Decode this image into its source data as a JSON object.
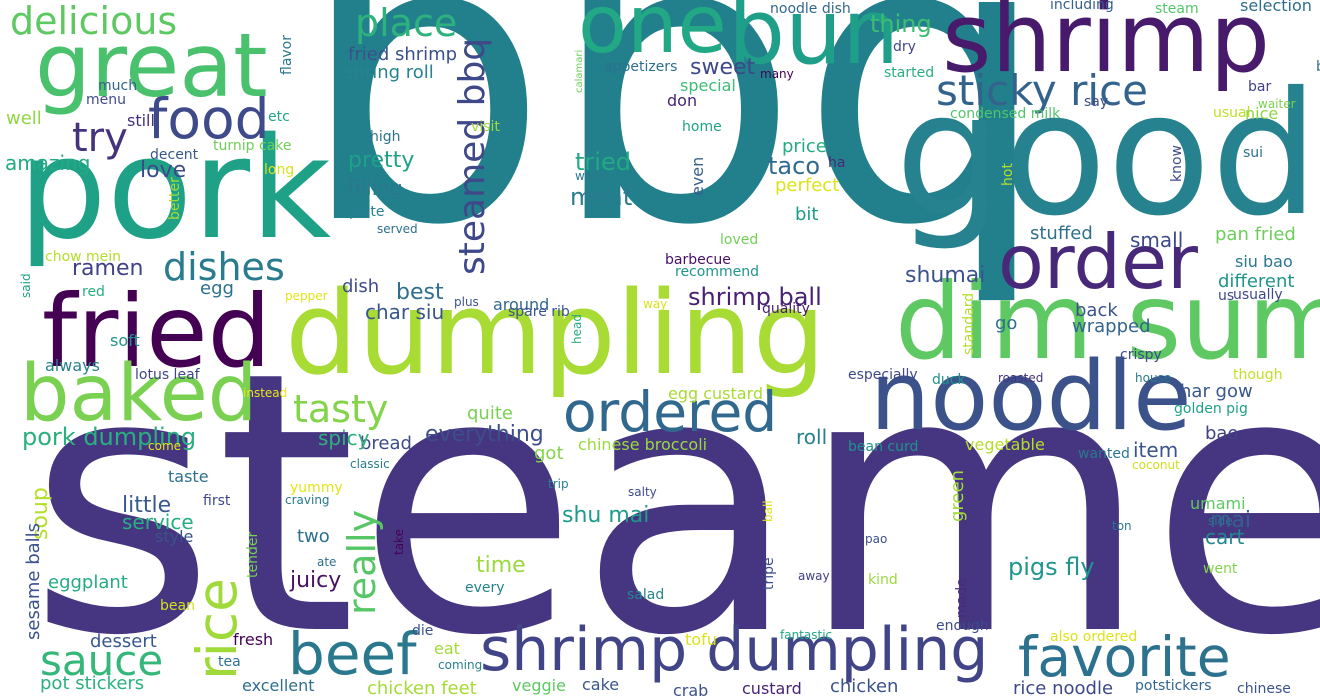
{
  "words": [
    {
      "text": "bbq",
      "color": "#21808c"
    },
    {
      "text": "steamed",
      "color": "#463681"
    },
    {
      "text": "dumpling",
      "color": "#a8db34"
    },
    {
      "text": "good",
      "color": "#26828e"
    },
    {
      "text": "pork",
      "color": "#1fa187"
    },
    {
      "text": "dim sum",
      "color": "#5ec962"
    },
    {
      "text": "shrimp",
      "color": "#481a6c"
    },
    {
      "text": "noodle",
      "color": "#3b528b"
    },
    {
      "text": "great",
      "color": "#4ac16d"
    },
    {
      "text": "bun",
      "color": "#1f9e89"
    },
    {
      "text": "fried",
      "color": "#440154"
    },
    {
      "text": "baked",
      "color": "#7ad151"
    },
    {
      "text": "order",
      "color": "#482878"
    },
    {
      "text": "one",
      "color": "#22a884"
    },
    {
      "text": "beef",
      "color": "#2a788e"
    },
    {
      "text": "shrimp dumpling",
      "color": "#414487"
    },
    {
      "text": "favorite",
      "color": "#2c728e"
    },
    {
      "text": "food",
      "color": "#3e4a89"
    },
    {
      "text": "sticky rice",
      "color": "#33638d"
    },
    {
      "text": "ordered",
      "color": "#31688e"
    },
    {
      "text": "sauce",
      "color": "#35b779"
    },
    {
      "text": "rice",
      "color": "#9fda3a"
    },
    {
      "text": "delicious",
      "color": "#5ec962"
    },
    {
      "text": "place",
      "color": "#2db27d"
    },
    {
      "text": "try",
      "color": "#46337e"
    },
    {
      "text": "dishes",
      "color": "#287c8e"
    },
    {
      "text": "tasty",
      "color": "#84d44b"
    },
    {
      "text": "really",
      "color": "#56c667"
    },
    {
      "text": "steamed bbq",
      "color": "#3f4889"
    },
    {
      "text": "pork dumpling",
      "color": "#2ab07f"
    },
    {
      "text": "shrimp ball",
      "color": "#482173"
    },
    {
      "text": "pigs fly",
      "color": "#1f958b"
    },
    {
      "text": "shumai",
      "color": "#3b528b"
    },
    {
      "text": "ramen",
      "color": "#424086"
    },
    {
      "text": "everything",
      "color": "#3d4e8a"
    },
    {
      "text": "thing",
      "color": "#3fbc73"
    },
    {
      "text": "sweet",
      "color": "#3e4989"
    },
    {
      "text": "taco",
      "color": "#31688e"
    },
    {
      "text": "meat",
      "color": "#297b8e"
    },
    {
      "text": "tried",
      "color": "#23a983"
    },
    {
      "text": "pretty",
      "color": "#1fa088"
    },
    {
      "text": "filling",
      "color": "#2a778e"
    },
    {
      "text": "amazing",
      "color": "#24aa83"
    },
    {
      "text": "love",
      "color": "#3e4a89"
    },
    {
      "text": "little",
      "color": "#38598c"
    },
    {
      "text": "service",
      "color": "#29af7f"
    },
    {
      "text": "juicy",
      "color": "#471164"
    },
    {
      "text": "two",
      "color": "#2d708e"
    },
    {
      "text": "time",
      "color": "#9bd93c"
    },
    {
      "text": "shu mai",
      "color": "#1e9b8a"
    },
    {
      "text": "soup",
      "color": "#b5de2b"
    },
    {
      "text": "eggplant",
      "color": "#25ab82"
    },
    {
      "text": "mai",
      "color": "#35608d"
    },
    {
      "text": "cart",
      "color": "#23888e"
    },
    {
      "text": "roll",
      "color": "#277f8e"
    },
    {
      "text": "bread",
      "color": "#3e4c8a"
    },
    {
      "text": "spicy",
      "color": "#2db27d"
    },
    {
      "text": "quite",
      "color": "#7ad151"
    },
    {
      "text": "best",
      "color": "#2e6e8e"
    },
    {
      "text": "char siu",
      "color": "#39568c"
    },
    {
      "text": "egg",
      "color": "#2d708e"
    },
    {
      "text": "dish",
      "color": "#3e4c8a"
    },
    {
      "text": "wrapped",
      "color": "#32658e"
    },
    {
      "text": "back",
      "color": "#3b528b"
    },
    {
      "text": "go",
      "color": "#2c728e"
    },
    {
      "text": "small",
      "color": "#3e4989"
    },
    {
      "text": "stuffed",
      "color": "#2e6f8e"
    },
    {
      "text": "pan fried",
      "color": "#6ccd5a"
    },
    {
      "text": "siu bao",
      "color": "#2a788e"
    },
    {
      "text": "different",
      "color": "#1f968b"
    },
    {
      "text": "har gow",
      "color": "#38588c"
    },
    {
      "text": "bao",
      "color": "#424186"
    },
    {
      "text": "item",
      "color": "#3b528b"
    },
    {
      "text": "crispy",
      "color": "#3e4a89"
    },
    {
      "text": "fried shrimp",
      "color": "#3b518b"
    },
    {
      "text": "spring roll",
      "color": "#26828e"
    },
    {
      "text": "appetizers",
      "color": "#2d708e"
    },
    {
      "text": "special",
      "color": "#3fbc73"
    },
    {
      "text": "don",
      "color": "#482475"
    },
    {
      "text": "home",
      "color": "#1fa187"
    },
    {
      "text": "price",
      "color": "#25ac82"
    },
    {
      "text": "perfect",
      "color": "#dde318"
    },
    {
      "text": "bit",
      "color": "#1e9c89"
    },
    {
      "text": "ha",
      "color": "#482979"
    },
    {
      "text": "even",
      "color": "#355f8d"
    },
    {
      "text": "loved",
      "color": "#73d056"
    },
    {
      "text": "barbecue",
      "color": "#471063"
    },
    {
      "text": "recommend",
      "color": "#1f958b"
    },
    {
      "text": "around",
      "color": "#31688e"
    },
    {
      "text": "spare rib",
      "color": "#3a548c"
    },
    {
      "text": "quality",
      "color": "#481b6d"
    },
    {
      "text": "noodle dish",
      "color": "#31688e"
    },
    {
      "text": "including",
      "color": "#355f8d"
    },
    {
      "text": "steam",
      "color": "#52c569"
    },
    {
      "text": "selection",
      "color": "#2e6e8e"
    },
    {
      "text": "bite",
      "color": "#2e6e8e"
    },
    {
      "text": "waiter",
      "color": "#7ad151"
    },
    {
      "text": "bar",
      "color": "#424086"
    },
    {
      "text": "say",
      "color": "#3d4d8a"
    },
    {
      "text": "usual",
      "color": "#bddf26"
    },
    {
      "text": "nice",
      "color": "#8ed645"
    },
    {
      "text": "sui",
      "color": "#2d708e"
    },
    {
      "text": "know",
      "color": "#3e4989"
    },
    {
      "text": "dry",
      "color": "#3e4989"
    },
    {
      "text": "started",
      "color": "#29af7f"
    },
    {
      "text": "many",
      "color": "#440154"
    },
    {
      "text": "condensed milk",
      "color": "#52c569"
    },
    {
      "text": "calamari",
      "color": "#6ece58"
    },
    {
      "text": "visit",
      "color": "#a2da37"
    },
    {
      "text": "high",
      "color": "#2c728e"
    },
    {
      "text": "warm",
      "color": "#2a788e"
    },
    {
      "text": "served",
      "color": "#2e6f8e"
    },
    {
      "text": "plate",
      "color": "#277f8e"
    },
    {
      "text": "hot",
      "color": "#b5de2b"
    },
    {
      "text": "flavor",
      "color": "#2a778e"
    },
    {
      "text": "much",
      "color": "#33638d"
    },
    {
      "text": "menu",
      "color": "#3e4c8a"
    },
    {
      "text": "still",
      "color": "#46307e"
    },
    {
      "text": "etc",
      "color": "#21a585"
    },
    {
      "text": "well",
      "color": "#90d743"
    },
    {
      "text": "turnip cake",
      "color": "#6ece58"
    },
    {
      "text": "decent",
      "color": "#38588c"
    },
    {
      "text": "long",
      "color": "#d5e21a"
    },
    {
      "text": "better",
      "color": "#a5db36"
    },
    {
      "text": "chow mein",
      "color": "#b2dd2d"
    },
    {
      "text": "said",
      "color": "#1fa088"
    },
    {
      "text": "red",
      "color": "#27ad81"
    },
    {
      "text": "pepper",
      "color": "#e2e418"
    },
    {
      "text": "plus",
      "color": "#3b528b"
    },
    {
      "text": "way",
      "color": "#d8e219"
    },
    {
      "text": "soft",
      "color": "#20928c"
    },
    {
      "text": "always",
      "color": "#26828e"
    },
    {
      "text": "lotus leaf",
      "color": "#3f4788"
    },
    {
      "text": "instead",
      "color": "#ece51b"
    },
    {
      "text": "head",
      "color": "#27ad81"
    },
    {
      "text": "standard",
      "color": "#b5de2b"
    },
    {
      "text": "especially",
      "color": "#3f4889"
    },
    {
      "text": "duck",
      "color": "#20928c"
    },
    {
      "text": "roasted",
      "color": "#46327e"
    },
    {
      "text": "house",
      "color": "#2a788e"
    },
    {
      "text": "though",
      "color": "#c2df23"
    },
    {
      "text": "golden pig",
      "color": "#1fa088"
    },
    {
      "text": "us",
      "color": "#3e4a89"
    },
    {
      "text": "usually",
      "color": "#3e4989"
    },
    {
      "text": "egg custard",
      "color": "#a8db34"
    },
    {
      "text": "chinese broccoli",
      "color": "#9bd93c"
    },
    {
      "text": "bean curd",
      "color": "#20928c"
    },
    {
      "text": "vegetable",
      "color": "#b5de2b"
    },
    {
      "text": "come",
      "color": "#e5e419"
    },
    {
      "text": "classic",
      "color": "#287c8e"
    },
    {
      "text": "got",
      "color": "#86d549"
    },
    {
      "text": "taste",
      "color": "#2d708e"
    },
    {
      "text": "wanted",
      "color": "#2a788e"
    },
    {
      "text": "coconut",
      "color": "#d0e11c"
    },
    {
      "text": "yummy",
      "color": "#e2e418"
    },
    {
      "text": "first",
      "color": "#3e4a89"
    },
    {
      "text": "craving",
      "color": "#2a788e"
    },
    {
      "text": "trip",
      "color": "#26828e"
    },
    {
      "text": "salty",
      "color": "#3e4c8a"
    },
    {
      "text": "green",
      "color": "#a0da39"
    },
    {
      "text": "umami",
      "color": "#5ec962"
    },
    {
      "text": "ball",
      "color": "#dde318"
    },
    {
      "text": "ton",
      "color": "#2a788e"
    },
    {
      "text": "side",
      "color": "#2c728e"
    },
    {
      "text": "went",
      "color": "#84d44b"
    },
    {
      "text": "style",
      "color": "#3b528b"
    },
    {
      "text": "tender",
      "color": "#75d054"
    },
    {
      "text": "ate",
      "color": "#2d708e"
    },
    {
      "text": "take",
      "color": "#440154"
    },
    {
      "text": "pao",
      "color": "#3b528b"
    },
    {
      "text": "tripe",
      "color": "#3d4e8a"
    },
    {
      "text": "away",
      "color": "#424086"
    },
    {
      "text": "kind",
      "color": "#9bd93c"
    },
    {
      "text": "every",
      "color": "#26828e"
    },
    {
      "text": "salad",
      "color": "#24868e"
    },
    {
      "text": "made",
      "color": "#472c7a"
    },
    {
      "text": "bean",
      "color": "#d5e21a"
    },
    {
      "text": "sesame balls",
      "color": "#3b528b"
    },
    {
      "text": "dessert",
      "color": "#38588c"
    },
    {
      "text": "fresh",
      "color": "#440154"
    },
    {
      "text": "tea",
      "color": "#2e6e8e"
    },
    {
      "text": "die",
      "color": "#3b528b"
    },
    {
      "text": "eat",
      "color": "#a2da37"
    },
    {
      "text": "coming",
      "color": "#26828e"
    },
    {
      "text": "tofu",
      "color": "#dde318"
    },
    {
      "text": "fantastic",
      "color": "#22a884"
    },
    {
      "text": "enough",
      "color": "#3e4989"
    },
    {
      "text": "also ordered",
      "color": "#dde318"
    },
    {
      "text": "pot stickers",
      "color": "#2ab07f"
    },
    {
      "text": "excellent",
      "color": "#2e6f8e"
    },
    {
      "text": "chicken feet",
      "color": "#a5db36"
    },
    {
      "text": "veggie",
      "color": "#5ec962"
    },
    {
      "text": "cake",
      "color": "#39568c"
    },
    {
      "text": "crab",
      "color": "#3b528b"
    },
    {
      "text": "custard",
      "color": "#482475"
    },
    {
      "text": "chicken",
      "color": "#3b528b"
    },
    {
      "text": "rice noodle",
      "color": "#3f4889"
    },
    {
      "text": "potstickers",
      "color": "#32658e"
    },
    {
      "text": "chinese",
      "color": "#3b528b"
    }
  ]
}
